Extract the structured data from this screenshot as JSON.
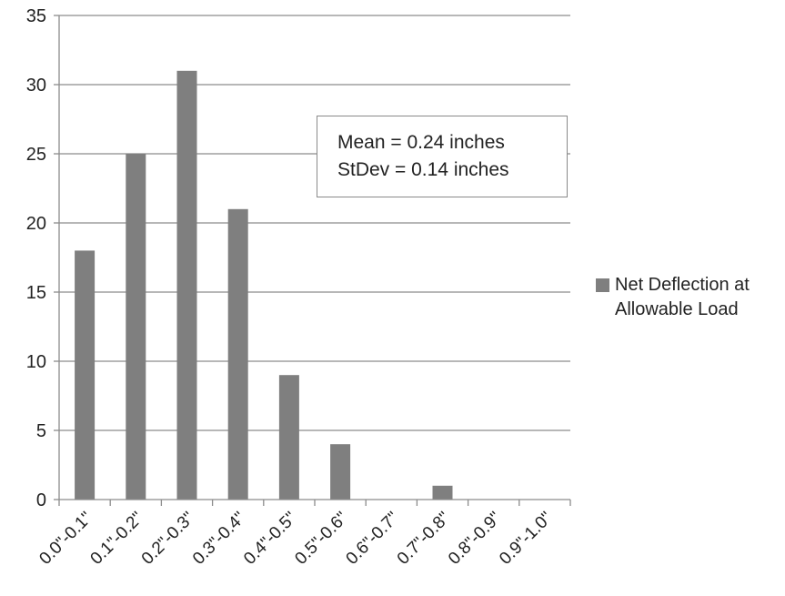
{
  "chart_data": {
    "type": "bar",
    "categories": [
      "0.0\"-0.1\"",
      "0.1\"-0.2\"",
      "0.2\"-0.3\"",
      "0.3\"-0.4\"",
      "0.4\"-0.5\"",
      "0.5\"-0.6\"",
      "0.6\"-0.7\"",
      "0.7\"-0.8\"",
      "0.8\"-0.9\"",
      "0.9\"-1.0\""
    ],
    "series": [
      {
        "name": "Net Deflection at Allowable Load",
        "values": [
          18,
          25,
          31,
          21,
          9,
          4,
          0,
          1,
          0,
          0
        ],
        "color": "#7f7f7f"
      }
    ],
    "ylim": [
      0,
      35
    ],
    "yticks": [
      "0",
      "5",
      "10",
      "15",
      "20",
      "25",
      "30",
      "35"
    ],
    "grid": true,
    "legend_position": "right",
    "annotation": {
      "line1": "Mean = 0.24 inches",
      "line2": "StDev = 0.14 inches"
    },
    "colors": {
      "bar": "#7f7f7f",
      "grid": "#8c8c8c",
      "axis": "#8c8c8c"
    }
  }
}
